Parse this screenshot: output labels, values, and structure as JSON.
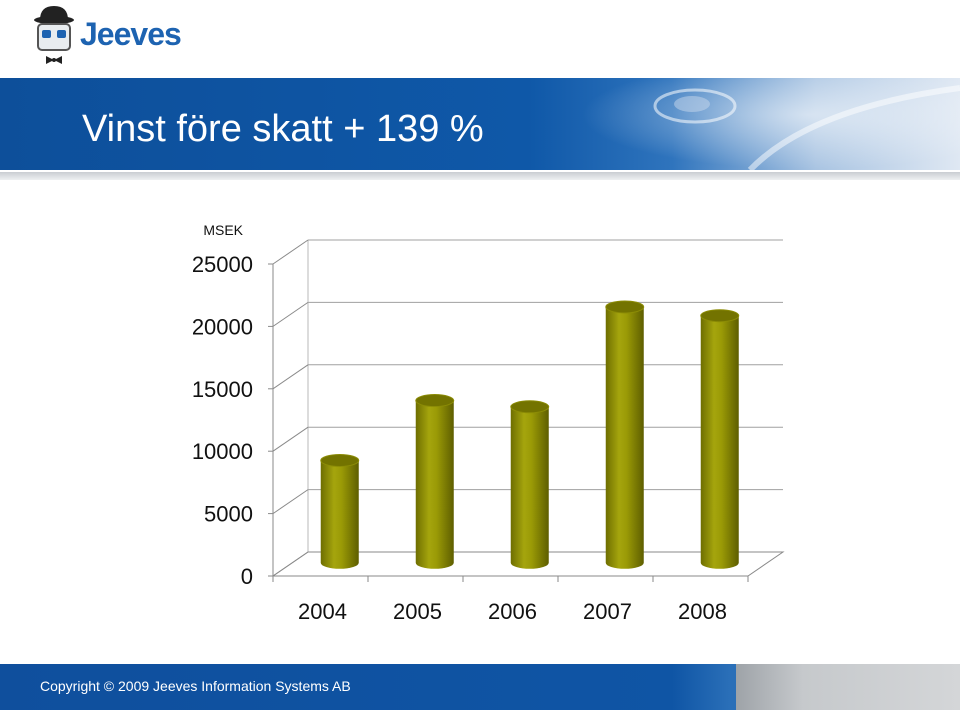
{
  "header": {
    "brand": "Jeeves",
    "title": "Vinst före skatt  + 139 %"
  },
  "footer": {
    "copyright": "Copyright © 2009 Jeeves Information Systems AB"
  },
  "colors": {
    "bar_main": "#9a9a06",
    "bar_top": "#6f6f00",
    "header_blue": "#0f58a8",
    "brand_blue": "#1d63b1"
  },
  "icons": [
    "jeeves-butler-logo-icon"
  ],
  "chart_data": {
    "type": "bar",
    "style": "3d-cylinder",
    "categories": [
      "2004",
      "2005",
      "2006",
      "2007",
      "2008"
    ],
    "values": [
      8200,
      13000,
      12500,
      20500,
      19800
    ],
    "ylabel": "MSEK",
    "ylim": [
      0,
      25000
    ],
    "yticks": [
      "0",
      "5000",
      "10000",
      "15000",
      "20000",
      "25000"
    ],
    "grid": true,
    "legend": false
  }
}
